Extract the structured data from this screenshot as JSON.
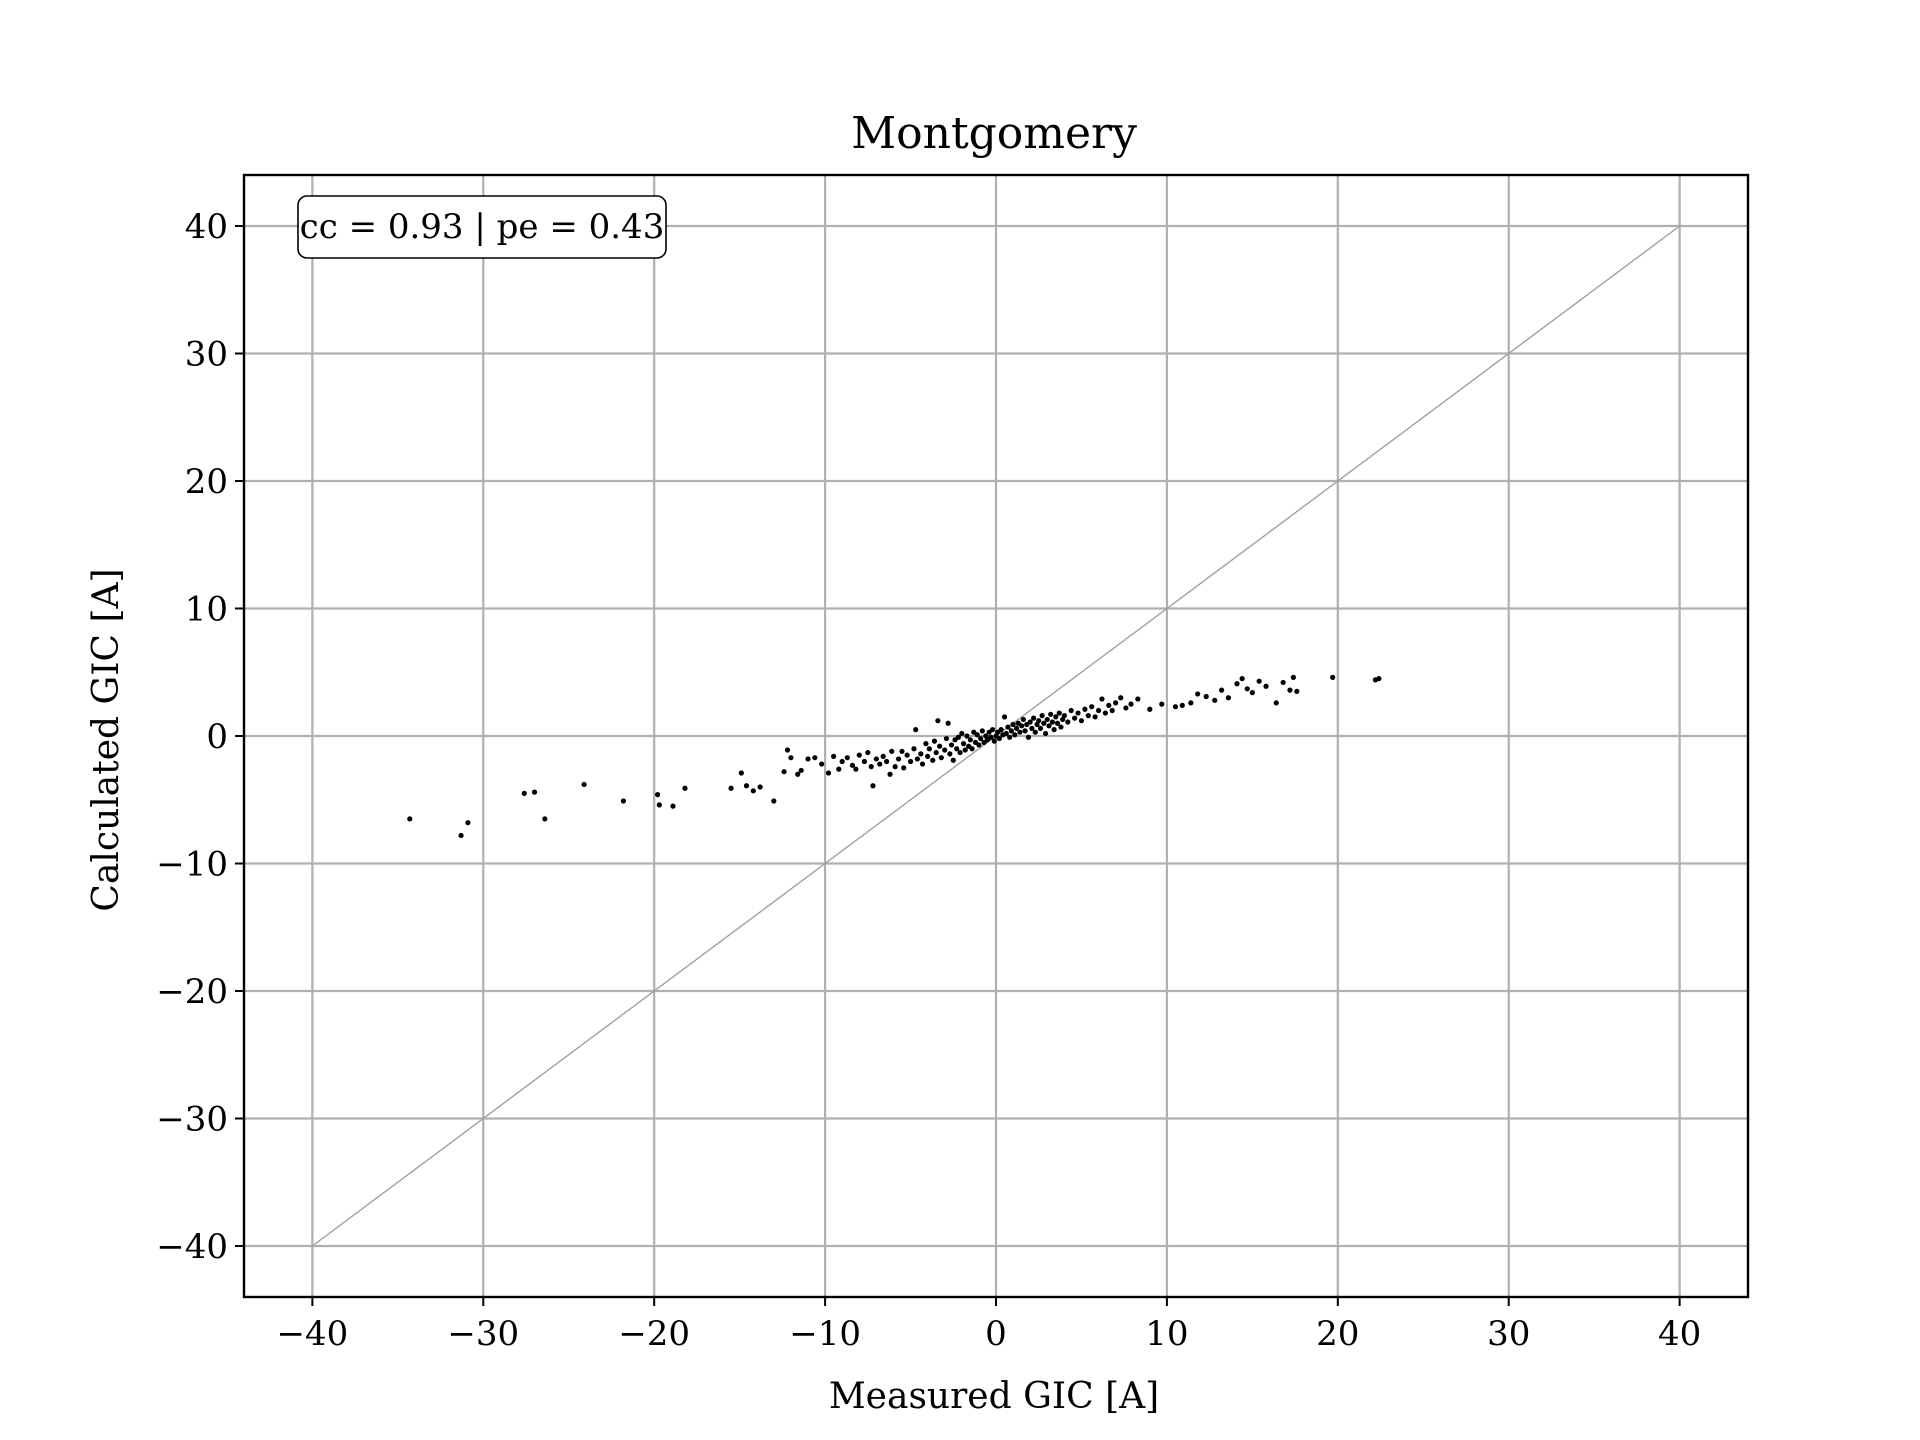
{
  "chart_data": {
    "type": "scatter",
    "title": "Montgomery",
    "xlabel": "Measured GIC [A]",
    "ylabel": "Calculated GIC [A]",
    "annotation": "cc = 0.93 | pe = 0.43",
    "xlim": [
      -44,
      44
    ],
    "ylim": [
      -44,
      44
    ],
    "xticks": [
      -40,
      -30,
      -20,
      -10,
      0,
      10,
      20,
      30,
      40
    ],
    "yticks": [
      -40,
      -30,
      -20,
      -10,
      0,
      10,
      20,
      30,
      40
    ],
    "xtick_labels": [
      "−40",
      "−30",
      "−20",
      "−10",
      "0",
      "10",
      "20",
      "30",
      "40"
    ],
    "ytick_labels": [
      "−40",
      "−30",
      "−20",
      "−10",
      "0",
      "10",
      "20",
      "30",
      "40"
    ],
    "grid": true,
    "reference_line": {
      "x": [
        -40,
        40
      ],
      "y": [
        -40,
        40
      ],
      "color": "#a0a0a0"
    },
    "point_color": "#000000",
    "grid_color": "#b0b0b0",
    "series": [
      {
        "points": [
          [
            -34.3,
            -6.5
          ],
          [
            -31.3,
            -7.8
          ],
          [
            -30.9,
            -6.8
          ],
          [
            -27.6,
            -4.5
          ],
          [
            -27.0,
            -4.4
          ],
          [
            -26.4,
            -6.5
          ],
          [
            -24.1,
            -3.8
          ],
          [
            -21.8,
            -5.1
          ],
          [
            -19.8,
            -4.6
          ],
          [
            -19.7,
            -5.4
          ],
          [
            -18.9,
            -5.5
          ],
          [
            -18.2,
            -4.1
          ],
          [
            -15.5,
            -4.1
          ],
          [
            -14.9,
            -2.9
          ],
          [
            -14.6,
            -3.9
          ],
          [
            -14.2,
            -4.3
          ],
          [
            -13.8,
            -4.0
          ],
          [
            -13.0,
            -5.1
          ],
          [
            -12.4,
            -2.8
          ],
          [
            -12.2,
            -1.1
          ],
          [
            -12.0,
            -1.7
          ],
          [
            -11.6,
            -3.0
          ],
          [
            -11.4,
            -2.7
          ],
          [
            -11.0,
            -1.8
          ],
          [
            -10.6,
            -1.7
          ],
          [
            -10.2,
            -2.2
          ],
          [
            -9.8,
            -2.9
          ],
          [
            -9.5,
            -1.6
          ],
          [
            -9.2,
            -2.6
          ],
          [
            -9.0,
            -2.0
          ],
          [
            -8.7,
            -1.7
          ],
          [
            -8.4,
            -2.3
          ],
          [
            -8.2,
            -2.6
          ],
          [
            -8.0,
            -1.5
          ],
          [
            -7.7,
            -2.0
          ],
          [
            -7.5,
            -1.3
          ],
          [
            -7.3,
            -2.4
          ],
          [
            -7.2,
            -3.9
          ],
          [
            -7.0,
            -1.8
          ],
          [
            -6.8,
            -2.2
          ],
          [
            -6.6,
            -1.6
          ],
          [
            -6.4,
            -2.0
          ],
          [
            -6.2,
            -3.0
          ],
          [
            -6.1,
            -1.2
          ],
          [
            -5.9,
            -2.4
          ],
          [
            -5.7,
            -1.8
          ],
          [
            -5.5,
            -1.2
          ],
          [
            -5.4,
            -2.5
          ],
          [
            -5.2,
            -1.5
          ],
          [
            -5.0,
            -2.0
          ],
          [
            -4.8,
            -1.0
          ],
          [
            -4.7,
            0.5
          ],
          [
            -4.6,
            -1.8
          ],
          [
            -4.4,
            -1.4
          ],
          [
            -4.3,
            -2.2
          ],
          [
            -4.1,
            -0.6
          ],
          [
            -4.0,
            -1.6
          ],
          [
            -3.9,
            -1.0
          ],
          [
            -3.7,
            -1.9
          ],
          [
            -3.6,
            -0.4
          ],
          [
            -3.5,
            -1.3
          ],
          [
            -3.4,
            1.2
          ],
          [
            -3.3,
            -0.8
          ],
          [
            -3.2,
            -1.7
          ],
          [
            -3.0,
            -1.1
          ],
          [
            -2.9,
            -0.2
          ],
          [
            -2.8,
            1.0
          ],
          [
            -2.7,
            -1.4
          ],
          [
            -2.6,
            -0.7
          ],
          [
            -2.5,
            -1.9
          ],
          [
            -2.4,
            -0.3
          ],
          [
            -2.3,
            -1.0
          ],
          [
            -2.2,
            -0.1
          ],
          [
            -2.1,
            -1.3
          ],
          [
            -2.0,
            0.2
          ],
          [
            -1.9,
            -0.6
          ],
          [
            -1.8,
            -1.1
          ],
          [
            -1.7,
            0.0
          ],
          [
            -1.6,
            -0.8
          ],
          [
            -1.5,
            -0.3
          ],
          [
            -1.4,
            -1.0
          ],
          [
            -1.3,
            0.3
          ],
          [
            -1.2,
            -0.5
          ],
          [
            -1.1,
            0.1
          ],
          [
            -1.0,
            -0.7
          ],
          [
            -0.9,
            -0.2
          ],
          [
            -0.8,
            0.4
          ],
          [
            -0.7,
            -0.5
          ],
          [
            -0.6,
            0.0
          ],
          [
            -0.5,
            -0.3
          ],
          [
            -0.4,
            0.3
          ],
          [
            -0.3,
            -0.1
          ],
          [
            -0.2,
            0.5
          ],
          [
            -0.1,
            -0.4
          ],
          [
            0.0,
            0.0
          ],
          [
            0.1,
            0.3
          ],
          [
            0.2,
            -0.2
          ],
          [
            0.3,
            0.5
          ],
          [
            0.4,
            0.1
          ],
          [
            0.5,
            1.5
          ],
          [
            0.6,
            0.2
          ],
          [
            0.7,
            0.7
          ],
          [
            0.8,
            -0.1
          ],
          [
            0.9,
            0.4
          ],
          [
            1.0,
            0.9
          ],
          [
            1.1,
            0.1
          ],
          [
            1.2,
            0.6
          ],
          [
            1.3,
            1.0
          ],
          [
            1.4,
            0.3
          ],
          [
            1.5,
            0.8
          ],
          [
            1.6,
            1.3
          ],
          [
            1.7,
            0.4
          ],
          [
            1.8,
            0.9
          ],
          [
            1.9,
            -0.1
          ],
          [
            2.0,
            1.1
          ],
          [
            2.1,
            0.6
          ],
          [
            2.2,
            1.4
          ],
          [
            2.3,
            0.3
          ],
          [
            2.4,
            0.9
          ],
          [
            2.5,
            1.2
          ],
          [
            2.6,
            0.6
          ],
          [
            2.7,
            1.6
          ],
          [
            2.8,
            1.0
          ],
          [
            2.9,
            0.2
          ],
          [
            3.0,
            1.3
          ],
          [
            3.1,
            0.8
          ],
          [
            3.2,
            1.7
          ],
          [
            3.3,
            1.1
          ],
          [
            3.4,
            0.5
          ],
          [
            3.5,
            1.5
          ],
          [
            3.6,
            1.0
          ],
          [
            3.7,
            1.8
          ],
          [
            3.8,
            0.7
          ],
          [
            3.9,
            1.3
          ],
          [
            4.0,
            1.6
          ],
          [
            4.2,
            1.1
          ],
          [
            4.4,
            2.0
          ],
          [
            4.6,
            1.4
          ],
          [
            4.8,
            1.8
          ],
          [
            5.0,
            1.2
          ],
          [
            5.2,
            2.1
          ],
          [
            5.4,
            1.6
          ],
          [
            5.6,
            2.3
          ],
          [
            5.8,
            1.5
          ],
          [
            6.0,
            2.0
          ],
          [
            6.2,
            2.9
          ],
          [
            6.4,
            1.8
          ],
          [
            6.6,
            2.4
          ],
          [
            6.8,
            2.0
          ],
          [
            7.0,
            2.6
          ],
          [
            7.3,
            3.0
          ],
          [
            7.6,
            2.2
          ],
          [
            7.9,
            2.5
          ],
          [
            8.3,
            2.9
          ],
          [
            9.0,
            2.1
          ],
          [
            9.7,
            2.5
          ],
          [
            10.5,
            2.3
          ],
          [
            10.9,
            2.4
          ],
          [
            11.4,
            2.6
          ],
          [
            11.8,
            3.3
          ],
          [
            12.3,
            3.1
          ],
          [
            12.8,
            2.8
          ],
          [
            13.2,
            3.6
          ],
          [
            13.6,
            3.0
          ],
          [
            14.1,
            4.1
          ],
          [
            14.4,
            4.5
          ],
          [
            14.7,
            3.7
          ],
          [
            15.0,
            3.4
          ],
          [
            15.4,
            4.3
          ],
          [
            15.8,
            3.9
          ],
          [
            16.4,
            2.6
          ],
          [
            16.8,
            4.2
          ],
          [
            17.2,
            3.6
          ],
          [
            17.4,
            4.6
          ],
          [
            17.6,
            3.5
          ],
          [
            19.7,
            4.6
          ],
          [
            22.2,
            4.4
          ],
          [
            22.4,
            4.5
          ]
        ]
      }
    ]
  }
}
